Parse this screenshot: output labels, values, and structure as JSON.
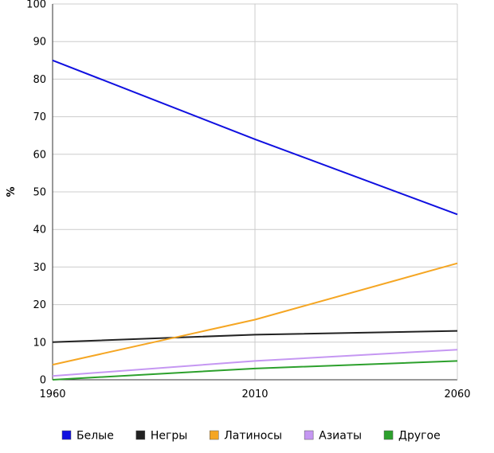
{
  "chart_data": {
    "type": "line",
    "x": [
      1960,
      2010,
      2060
    ],
    "xlim": [
      1960,
      2060
    ],
    "ylim": [
      0,
      100
    ],
    "x_ticks": [
      "1960",
      "2010",
      "2060"
    ],
    "y_ticks": [
      "0",
      "10",
      "20",
      "30",
      "40",
      "50",
      "60",
      "70",
      "80",
      "90",
      "100"
    ],
    "xlabel": "",
    "ylabel": "%",
    "grid": true,
    "legend_position": "bottom",
    "series": [
      {
        "name": "Белые",
        "color": "#1010e0",
        "values": [
          85,
          64,
          44
        ]
      },
      {
        "name": "Негры",
        "color": "#222222",
        "values": [
          10,
          12,
          13
        ]
      },
      {
        "name": "Латиносы",
        "color": "#f5a623",
        "values": [
          4,
          16,
          31
        ]
      },
      {
        "name": "Азиаты",
        "color": "#c597f2",
        "values": [
          1,
          5,
          8
        ]
      },
      {
        "name": "Другое",
        "color": "#2ca02c",
        "values": [
          0,
          3,
          5
        ]
      }
    ]
  }
}
